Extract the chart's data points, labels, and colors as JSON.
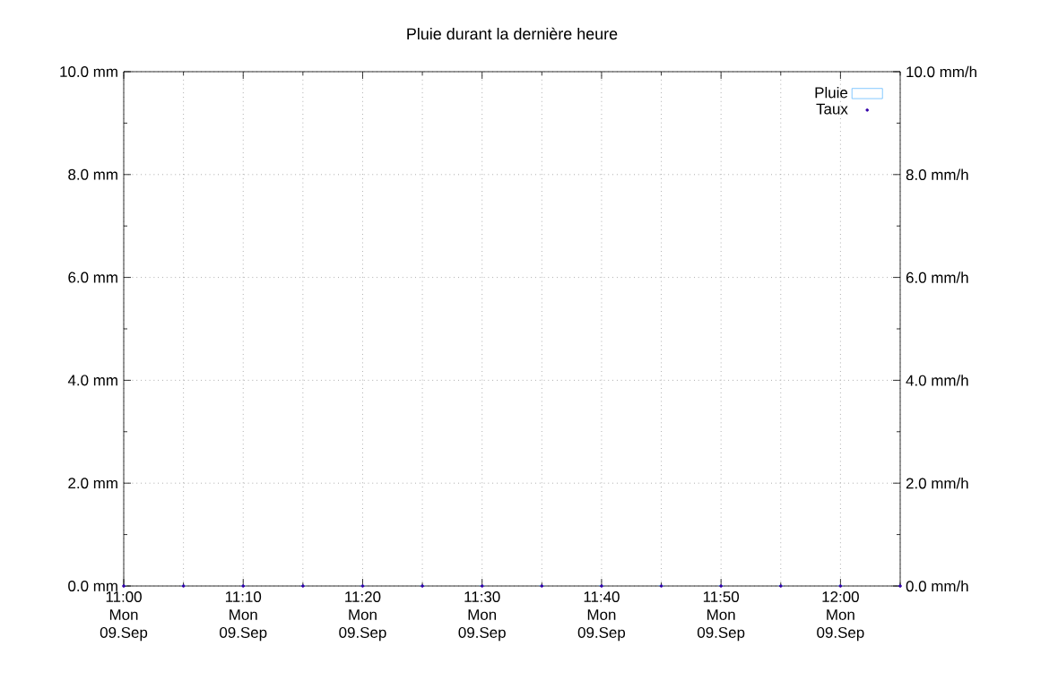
{
  "chart_data": {
    "type": "bar",
    "title": "Pluie durant la dernière heure",
    "categories": [
      "11:00 Mon 09.Sep",
      null,
      "11:10 Mon 09.Sep",
      null,
      "11:20 Mon 09.Sep",
      null,
      "11:30 Mon 09.Sep",
      null,
      "11:40 Mon 09.Sep",
      null,
      "11:50 Mon 09.Sep",
      null,
      "12:00 Mon 09.Sep",
      null
    ],
    "ylim": [
      0,
      10
    ],
    "yticks": [
      {
        "value": 0,
        "label": "0.0 mm"
      },
      {
        "value": 1,
        "label": null
      },
      {
        "value": 2,
        "label": "2.0 mm"
      },
      {
        "value": 3,
        "label": null
      },
      {
        "value": 4,
        "label": "4.0 mm"
      },
      {
        "value": 5,
        "label": null
      },
      {
        "value": 6,
        "label": "6.0 mm"
      },
      {
        "value": 7,
        "label": null
      },
      {
        "value": 8,
        "label": "8.0 mm"
      },
      {
        "value": 9,
        "label": null
      },
      {
        "value": 10,
        "label": "10.0 mm"
      }
    ],
    "y2lim": [
      0,
      10
    ],
    "y2ticks": [
      {
        "value": 0,
        "label": "0.0 mm/h"
      },
      {
        "value": 1,
        "label": null
      },
      {
        "value": 2,
        "label": "2.0 mm/h"
      },
      {
        "value": 3,
        "label": null
      },
      {
        "value": 4,
        "label": "4.0 mm/h"
      },
      {
        "value": 5,
        "label": null
      },
      {
        "value": 6,
        "label": "6.0 mm/h"
      },
      {
        "value": 7,
        "label": null
      },
      {
        "value": 8,
        "label": "8.0 mm/h"
      },
      {
        "value": 9,
        "label": null
      },
      {
        "value": 10,
        "label": "10.0 mm/h"
      }
    ],
    "series": [
      {
        "name": "Pluie",
        "color": "#66bbff",
        "values": [
          0,
          0,
          0,
          0,
          0,
          0,
          0,
          0,
          0,
          0,
          0,
          0,
          0,
          0
        ]
      },
      {
        "name": "Taux",
        "type": "scatter",
        "axis": "y2",
        "color": "#3300aa",
        "values": [
          0,
          0,
          0,
          0,
          0,
          0,
          0,
          0,
          0,
          0,
          0,
          0,
          0,
          0
        ]
      }
    ],
    "grid": true,
    "legend": "top right"
  }
}
